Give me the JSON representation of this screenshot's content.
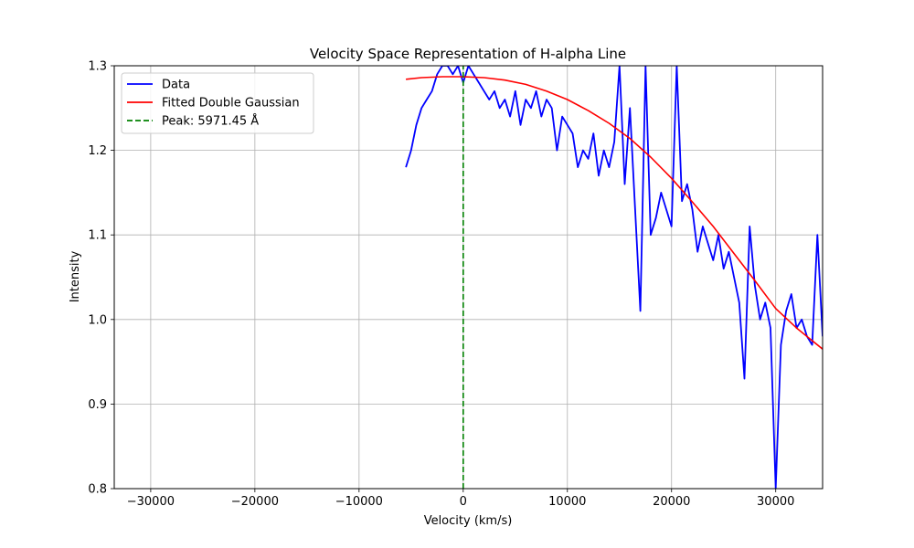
{
  "chart_data": {
    "type": "line",
    "title": "Velocity Space Representation of H-alpha Line",
    "xlabel": "Velocity (km/s)",
    "ylabel": "Intensity",
    "xlim": [
      -33500,
      34500
    ],
    "ylim": [
      0.8,
      1.3
    ],
    "xticks": [
      -30000,
      -20000,
      -10000,
      0,
      10000,
      20000,
      30000
    ],
    "xtick_labels": [
      "−30000",
      "−20000",
      "−10000",
      "0",
      "10000",
      "20000",
      "30000"
    ],
    "yticks": [
      0.8,
      0.9,
      1.0,
      1.1,
      1.2,
      1.3
    ],
    "ytick_labels": [
      "0.8",
      "0.9",
      "1.0",
      "1.1",
      "1.2",
      "1.3"
    ],
    "grid": true,
    "legend": "upper-left",
    "series": [
      {
        "name": "Data",
        "color": "#0000ff",
        "style": "solid",
        "x": [
          -5500,
          -5000,
          -4500,
          -4000,
          -3500,
          -3000,
          -2500,
          -2000,
          -1500,
          -1000,
          -500,
          0,
          500,
          1000,
          1500,
          2000,
          2500,
          3000,
          3500,
          4000,
          4500,
          5000,
          5500,
          6000,
          6500,
          7000,
          7500,
          8000,
          8500,
          9000,
          9500,
          10000,
          10500,
          11000,
          11500,
          12000,
          12500,
          13000,
          13500,
          14000,
          14500,
          15000,
          15500,
          16000,
          16500,
          17000,
          17500,
          18000,
          18500,
          19000,
          19500,
          20000,
          20500,
          21000,
          21500,
          22000,
          22500,
          23000,
          23500,
          24000,
          24500,
          25000,
          25500,
          26000,
          26500,
          27000,
          27500,
          28000,
          28500,
          29000,
          29500,
          30000,
          30500,
          31000,
          31500,
          32000,
          32500,
          33000,
          33500,
          34000,
          34500
        ],
        "y": [
          1.18,
          1.2,
          1.23,
          1.25,
          1.26,
          1.27,
          1.29,
          1.3,
          1.3,
          1.29,
          1.3,
          1.28,
          1.3,
          1.29,
          1.28,
          1.27,
          1.26,
          1.27,
          1.25,
          1.26,
          1.24,
          1.27,
          1.23,
          1.26,
          1.25,
          1.27,
          1.24,
          1.26,
          1.25,
          1.2,
          1.24,
          1.23,
          1.22,
          1.18,
          1.2,
          1.19,
          1.22,
          1.17,
          1.2,
          1.18,
          1.21,
          1.3,
          1.16,
          1.25,
          1.13,
          1.01,
          1.3,
          1.1,
          1.12,
          1.15,
          1.13,
          1.11,
          1.3,
          1.14,
          1.16,
          1.13,
          1.08,
          1.11,
          1.09,
          1.07,
          1.1,
          1.06,
          1.08,
          1.05,
          1.02,
          0.93,
          1.11,
          1.04,
          1.0,
          1.02,
          0.99,
          0.8,
          0.97,
          1.01,
          1.03,
          0.99,
          1.0,
          0.98,
          0.97,
          1.1,
          0.98
        ]
      },
      {
        "name": "Fitted Double Gaussian",
        "color": "#ff0000",
        "style": "solid",
        "x": [
          -5500,
          -4000,
          -2000,
          0,
          2000,
          4000,
          6000,
          8000,
          10000,
          12000,
          14000,
          16000,
          18000,
          20000,
          22000,
          24000,
          26000,
          28000,
          30000,
          32000,
          34500
        ],
        "y": [
          1.284,
          1.286,
          1.287,
          1.287,
          1.286,
          1.283,
          1.278,
          1.27,
          1.26,
          1.247,
          1.232,
          1.214,
          1.192,
          1.167,
          1.139,
          1.11,
          1.078,
          1.046,
          1.013,
          0.99,
          0.965
        ]
      },
      {
        "name": "Peak: 5971.45 Å",
        "color": "#008000",
        "style": "dashed",
        "x": [
          0,
          0
        ],
        "y": [
          0.8,
          1.3
        ]
      }
    ]
  }
}
